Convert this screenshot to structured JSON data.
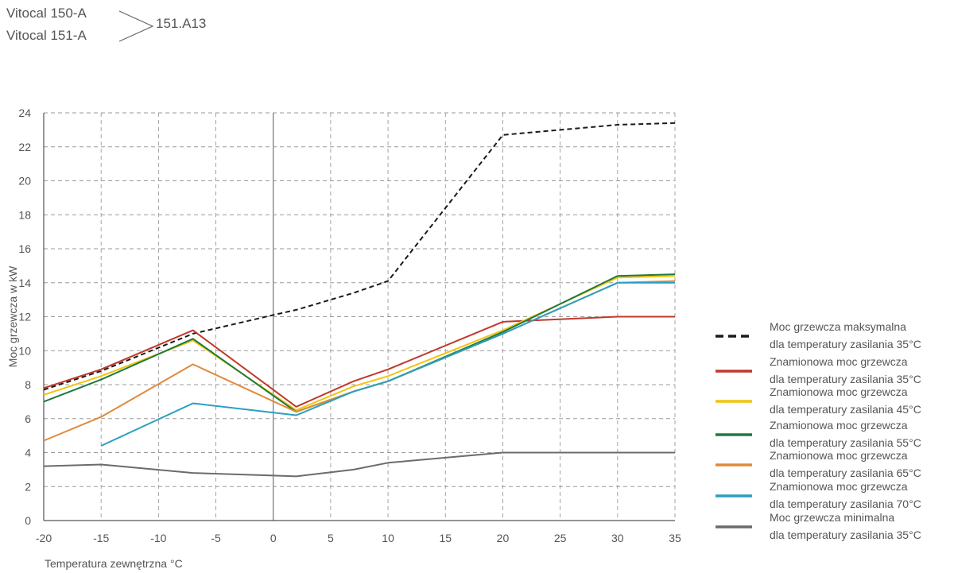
{
  "header": {
    "model_1": "Vitocal 150-A",
    "model_2": "Vitocal 151-A",
    "code": "151.A13"
  },
  "chart_data": {
    "type": "line",
    "xlabel": "Temperatura zewnętrzna °C",
    "ylabel": "Moc grzewcza w kW",
    "xlim": [
      -20,
      35
    ],
    "ylim": [
      0,
      24
    ],
    "xticks": [
      -20,
      -15,
      -10,
      -5,
      0,
      5,
      10,
      15,
      20,
      25,
      30,
      35
    ],
    "yticks": [
      0,
      2,
      4,
      6,
      8,
      10,
      12,
      14,
      16,
      18,
      20,
      22,
      24
    ],
    "xtick_labels": [
      "-20",
      "-15",
      "-10",
      "-5",
      "0",
      "5",
      "10",
      "15",
      "20",
      "25",
      "30",
      "35"
    ],
    "ytick_labels": [
      "0",
      "2",
      "4",
      "6",
      "8",
      "10",
      "12",
      "14",
      "16",
      "18",
      "20",
      "22",
      "24"
    ],
    "grid": "dashed",
    "legend_position": "right",
    "series": [
      {
        "name_line1": "Moc grzewcza maksymalna",
        "name_line2": "dla temperatury zasilania 35°C",
        "color": "#1a1a1a",
        "dashed": true,
        "x": [
          -20,
          -15,
          -7,
          0,
          2,
          7,
          10,
          20,
          30,
          35
        ],
        "y": [
          7.7,
          8.8,
          11.0,
          12.1,
          12.4,
          13.4,
          14.1,
          22.7,
          23.3,
          23.4
        ]
      },
      {
        "name_line1": "Znamionowa moc grzewcza",
        "name_line2": "dla temperatury zasilania 35°C",
        "color": "#c0392b",
        "x": [
          -20,
          -15,
          -7,
          2,
          7,
          10,
          20,
          30,
          35
        ],
        "y": [
          7.8,
          8.9,
          11.2,
          6.7,
          8.2,
          8.9,
          11.7,
          12.0,
          12.0
        ]
      },
      {
        "name_line1": "Znamionowa moc grzewcza",
        "name_line2": "dla temperatury zasilania 45°C",
        "color": "#f1c40f",
        "x": [
          -20,
          -15,
          -7,
          2,
          7,
          10,
          20,
          30,
          35
        ],
        "y": [
          7.4,
          8.5,
          10.6,
          6.5,
          7.9,
          8.5,
          11.2,
          14.3,
          14.4
        ]
      },
      {
        "name_line1": "Znamionowa moc grzewcza",
        "name_line2": "dla temperatury zasilania 55°C",
        "color": "#1e7a3c",
        "x": [
          -20,
          -15,
          -7,
          2,
          7,
          10,
          20,
          30,
          35
        ],
        "y": [
          7.0,
          8.3,
          10.7,
          6.4,
          7.6,
          8.2,
          11.1,
          14.4,
          14.5
        ]
      },
      {
        "name_line1": "Znamionowa moc grzewcza",
        "name_line2": "dla temperatury zasilania 65°C",
        "color": "#e08a3c",
        "x": [
          -20,
          -15,
          -7,
          2,
          7,
          10,
          20,
          30,
          35
        ],
        "y": [
          4.7,
          6.1,
          9.2,
          6.4,
          7.6,
          8.2,
          11.0,
          14.0,
          14.1
        ]
      },
      {
        "name_line1": "Znamionowa moc grzewcza",
        "name_line2": "dla temperatury zasilania 70°C",
        "color": "#2a9fc1",
        "x": [
          -15,
          -7,
          2,
          7,
          10,
          20,
          30,
          35
        ],
        "y": [
          4.4,
          6.9,
          6.2,
          7.6,
          8.2,
          11.0,
          14.0,
          14.0
        ]
      },
      {
        "name_line1": "Moc grzewcza minimalna",
        "name_line2": "dla temperatury zasilania 35°C",
        "color": "#6b6b6b",
        "x": [
          -20,
          -15,
          -7,
          0,
          2,
          7,
          10,
          20,
          30,
          35
        ],
        "y": [
          3.2,
          3.3,
          2.8,
          2.65,
          2.6,
          3.0,
          3.4,
          4.0,
          4.0,
          4.0
        ]
      }
    ]
  }
}
